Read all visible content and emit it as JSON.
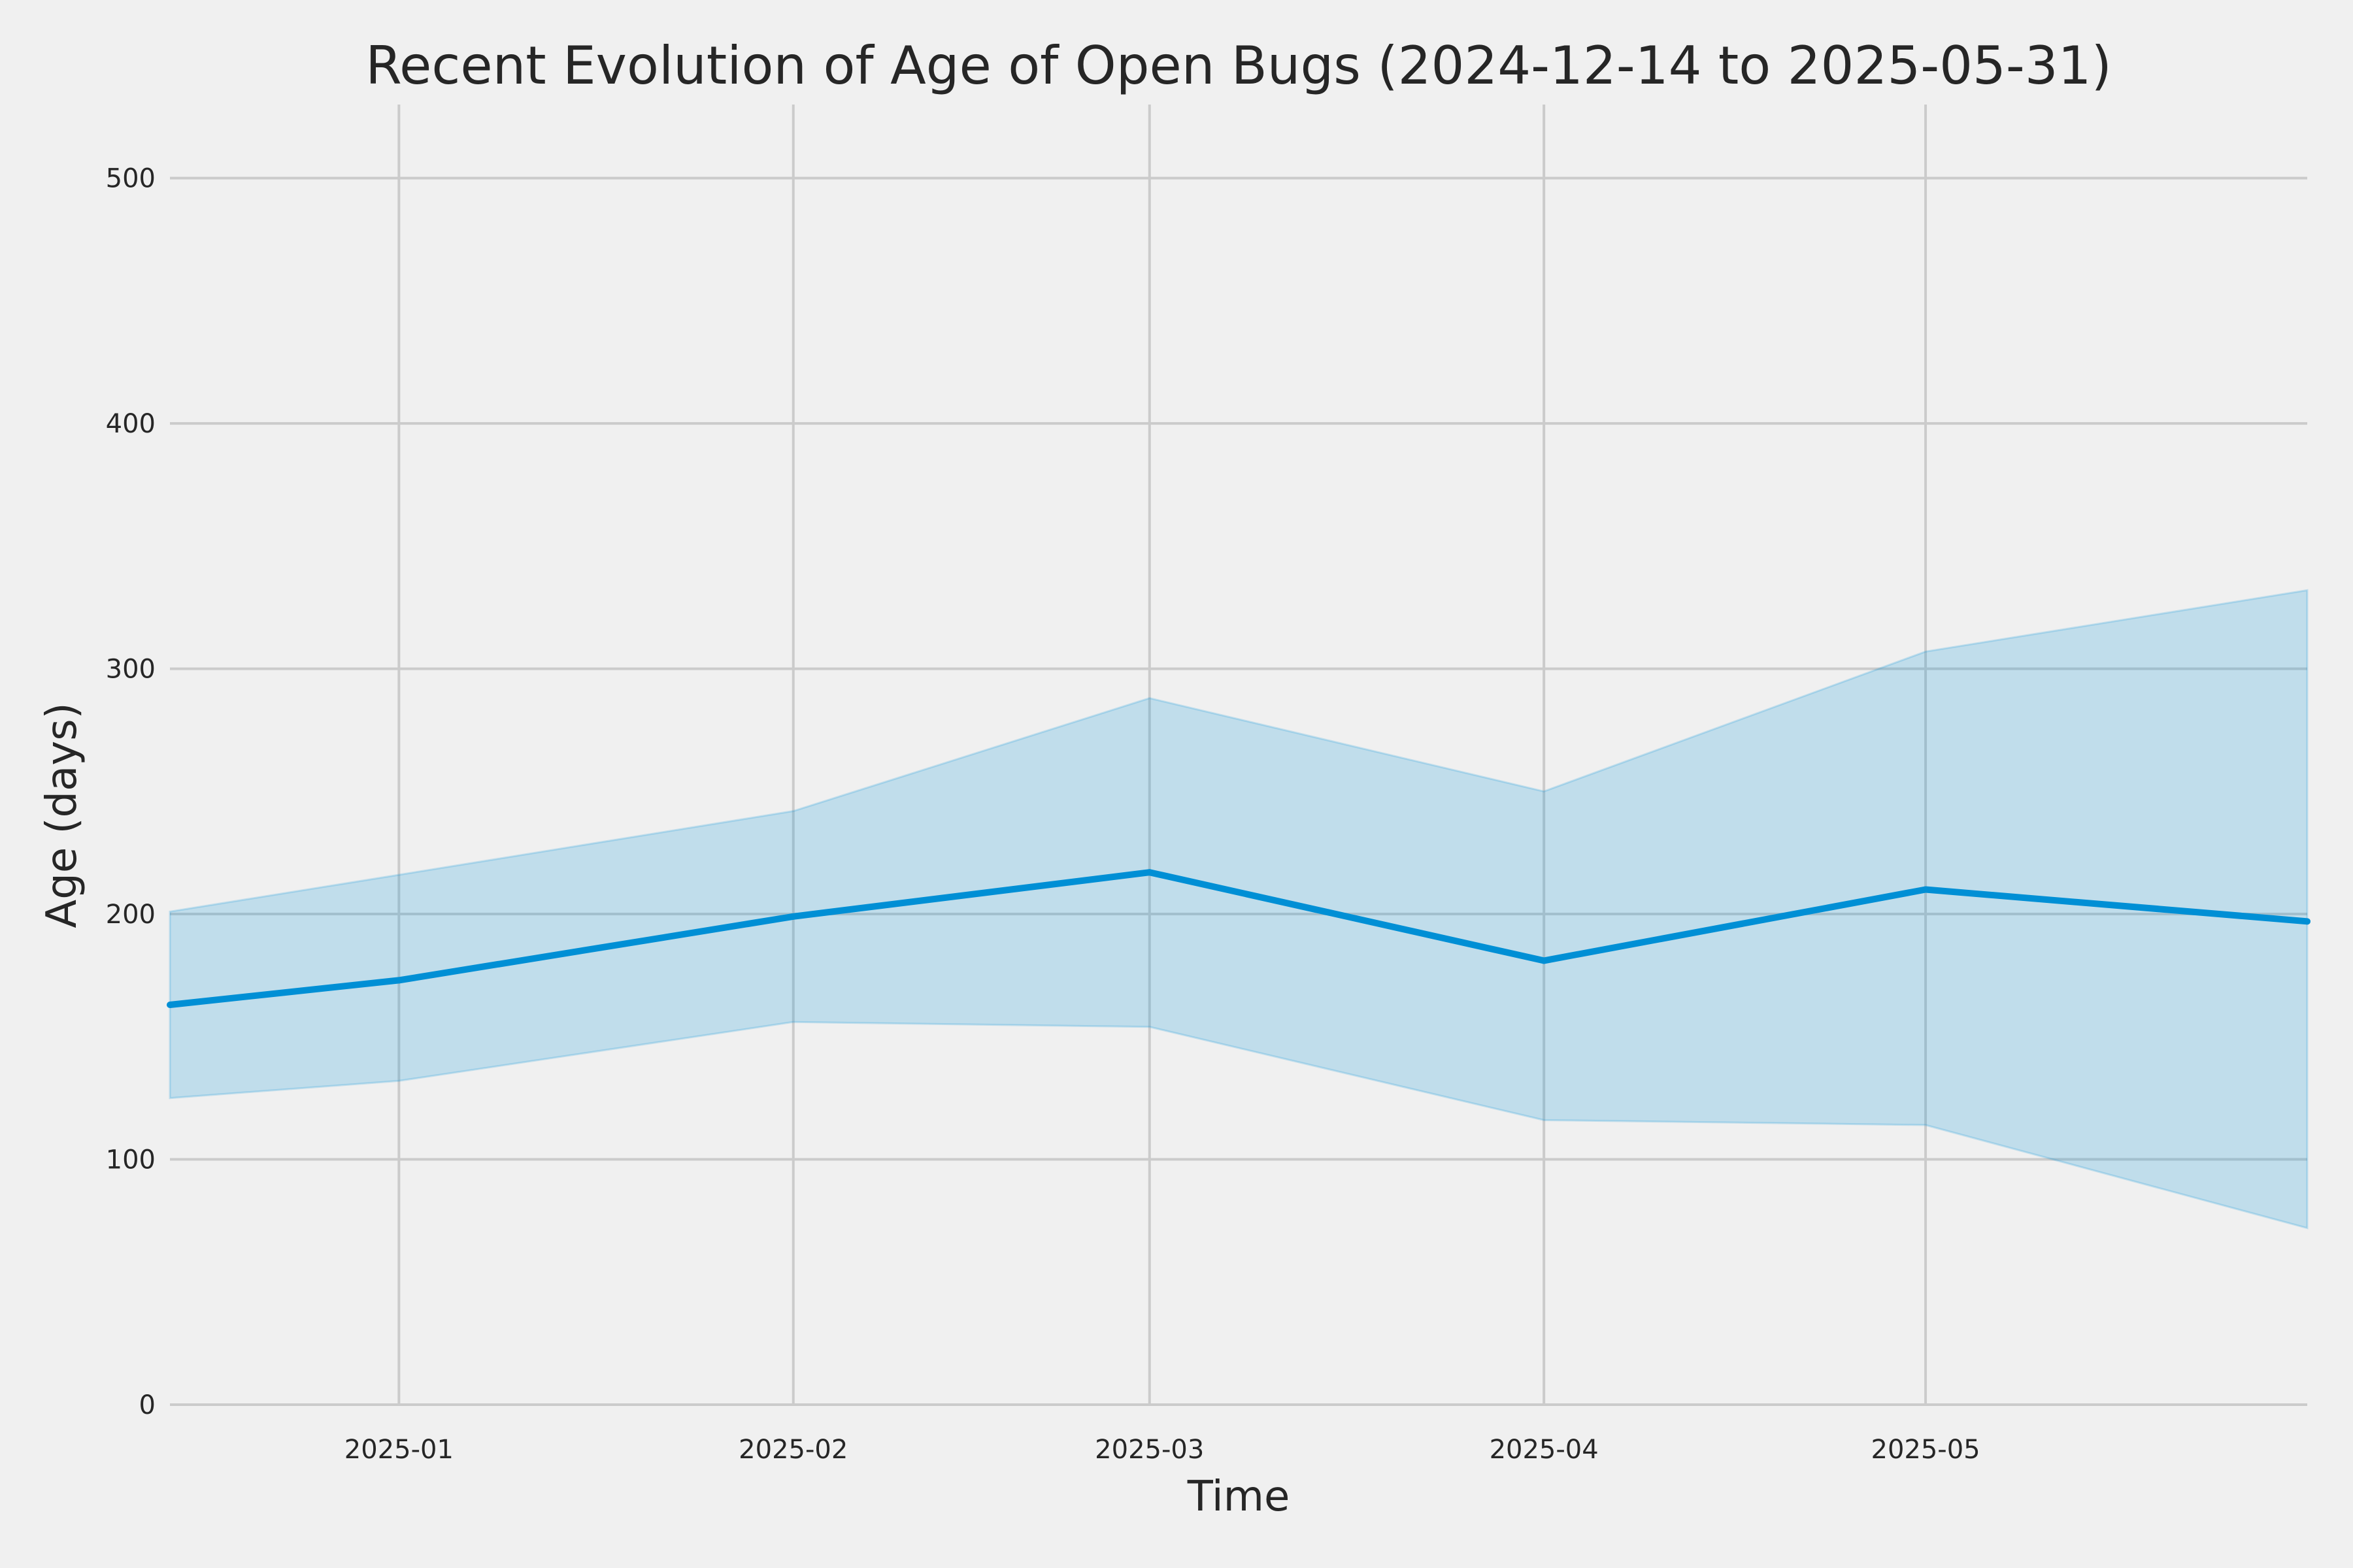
{
  "chart_data": {
    "type": "area",
    "title": "Recent Evolution of Age of Open Bugs (2024-12-14 to 2025-05-31)",
    "xlabel": "Time",
    "ylabel": "Age (days)",
    "xlim": [
      "2024-12-14",
      "2025-05-31"
    ],
    "ylim": [
      0,
      530
    ],
    "x_ticks": [
      "2025-01-01",
      "2025-02-01",
      "2025-03-01",
      "2025-04-01",
      "2025-05-01"
    ],
    "x_tick_labels": [
      "2025-01",
      "2025-02",
      "2025-03",
      "2025-04",
      "2025-05"
    ],
    "y_ticks": [
      0,
      100,
      200,
      300,
      400,
      500
    ],
    "y_tick_labels": [
      "0",
      "100",
      "200",
      "300",
      "400",
      "500"
    ],
    "grid": true,
    "x": [
      "2024-12-14",
      "2025-01-01",
      "2025-02-01",
      "2025-03-01",
      "2025-04-01",
      "2025-05-01",
      "2025-05-31"
    ],
    "series": [
      {
        "values": [
          163,
          173,
          199,
          217,
          181,
          210,
          197
        ],
        "lower": [
          125,
          132,
          156,
          154,
          116,
          114,
          72
        ],
        "upper": [
          201,
          216,
          242,
          288,
          250,
          307,
          332
        ],
        "color": "#008fd5",
        "band_color": "#008fd5"
      }
    ]
  }
}
